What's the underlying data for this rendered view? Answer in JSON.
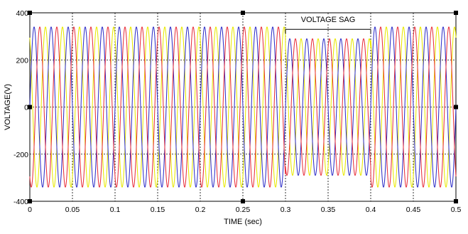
{
  "chart_data": {
    "type": "line",
    "title": "",
    "xlabel": "TIME (sec)",
    "ylabel": "VOLTAGE(V)",
    "xlim": [
      0,
      0.5
    ],
    "ylim": [
      -400,
      400
    ],
    "x_ticks": [
      0,
      0.05,
      0.1,
      0.15,
      0.2,
      0.25,
      0.3,
      0.35,
      0.4,
      0.45,
      0.5
    ],
    "x_tick_labels": [
      "0",
      "0.05",
      "0.1",
      "0.15",
      "0.2",
      "0.25",
      "0.3",
      "0.35",
      "0.4",
      "0.45",
      "0.5"
    ],
    "y_ticks": [
      -400,
      -200,
      0,
      200,
      400
    ],
    "y_tick_labels": [
      "-400",
      "-200",
      "0",
      "200",
      "400"
    ],
    "grid": true,
    "legend": "none",
    "series": [
      {
        "color": "#e8e800",
        "amplitude": 340,
        "phase_deg": 120,
        "frequency_hz": 50
      },
      {
        "color": "#3030c8",
        "amplitude": 340,
        "phase_deg": 0,
        "frequency_hz": 50
      },
      {
        "color": "#e8303c",
        "amplitude": 340,
        "phase_deg": -120,
        "frequency_hz": 50
      }
    ],
    "events": [
      {
        "x_start": 0.3,
        "x_end": 0.4,
        "amplitude_during": 290
      }
    ],
    "annotations": [
      {
        "text": "VOLTAGE SAG",
        "x_start": 0.3,
        "x_end": 0.4
      }
    ]
  }
}
